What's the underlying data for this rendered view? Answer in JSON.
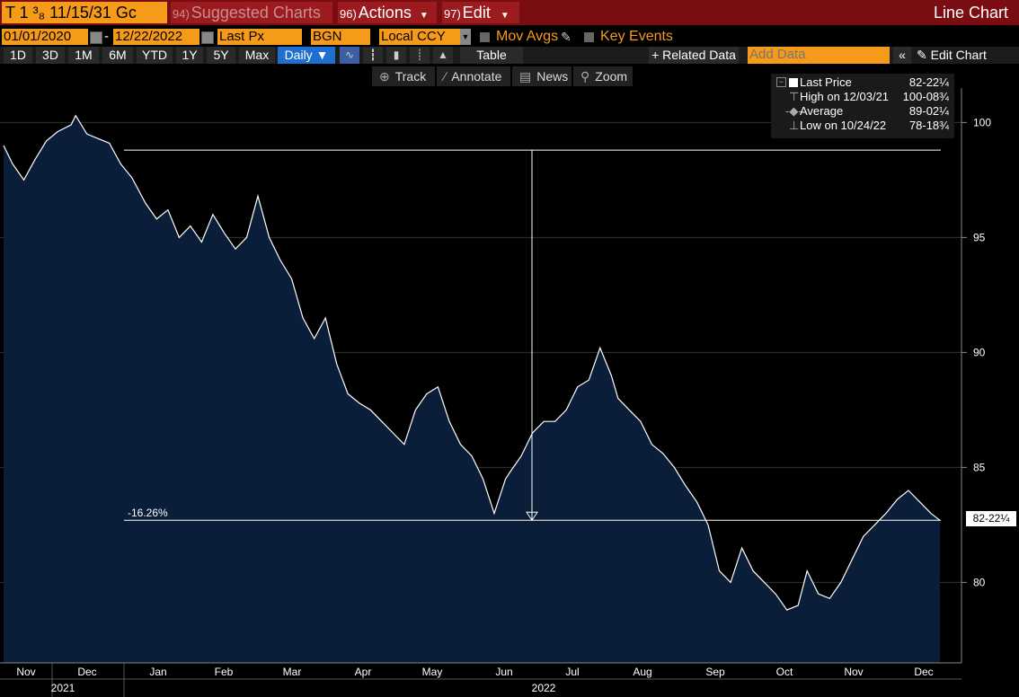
{
  "titlebar": {
    "ticker": "T 1 ³₈ 11/15/31 Gc",
    "suggest_num": "94)",
    "suggest": "Suggested Charts",
    "actions_num": "96)",
    "actions": "Actions",
    "edit_num": "97)",
    "edit": "Edit",
    "chart_type": "Line Chart"
  },
  "options": {
    "start_date": "01/01/2020",
    "end_date": "12/22/2022",
    "field": "Last Px",
    "source": "BGN",
    "currency": "Local CCY",
    "mov_avgs": "Mov Avgs",
    "key_events": "Key Events"
  },
  "periods": [
    "1D",
    "3D",
    "1M",
    "6M",
    "YTD",
    "1Y",
    "5Y",
    "Max"
  ],
  "frequency": "Daily ▼",
  "table_label": "Table",
  "related_data": "+ Related Data",
  "add_data_placeholder": "Add Data",
  "edit_chart": "Edit Chart",
  "tools": {
    "track": "Track",
    "annotate": "Annotate",
    "news": "News",
    "zoom": "Zoom"
  },
  "legend": {
    "last_label": "Last Price",
    "last_value": "82-22¼",
    "high_label": "High on 12/03/21",
    "high_value": "100-08¾",
    "avg_label": "Average",
    "avg_value": "89-02¼",
    "low_label": "Low on 10/24/22",
    "low_value": "78-18¾"
  },
  "annotation": {
    "change": "-16.26%"
  },
  "last_price_tag": "82-22¼",
  "colors": {
    "accent": "#f59b19",
    "titlebar": "#7a0d12",
    "fill": "#0a1e3a",
    "line": "#ffffff"
  },
  "chart_data": {
    "type": "area",
    "yticks": [
      80,
      85,
      90,
      95,
      100
    ],
    "ylim": [
      76.5,
      101.5
    ],
    "xticks": [
      "Nov",
      "Dec",
      "Jan",
      "Feb",
      "Mar",
      "Apr",
      "May",
      "Jun",
      "Jul",
      "Aug",
      "Sep",
      "Oct",
      "Nov",
      "Dec"
    ],
    "years": [
      "2021",
      "2022"
    ],
    "x": [
      "2021-11-01",
      "2021-11-05",
      "2021-11-10",
      "2021-11-15",
      "2021-11-20",
      "2021-11-25",
      "2021-12-01",
      "2021-12-03",
      "2021-12-08",
      "2021-12-13",
      "2021-12-18",
      "2021-12-23",
      "2021-12-28",
      "2022-01-03",
      "2022-01-08",
      "2022-01-13",
      "2022-01-18",
      "2022-01-23",
      "2022-01-28",
      "2022-02-02",
      "2022-02-07",
      "2022-02-12",
      "2022-02-17",
      "2022-02-22",
      "2022-02-27",
      "2022-03-04",
      "2022-03-09",
      "2022-03-14",
      "2022-03-19",
      "2022-03-24",
      "2022-03-29",
      "2022-04-03",
      "2022-04-08",
      "2022-04-13",
      "2022-04-18",
      "2022-04-23",
      "2022-04-28",
      "2022-05-03",
      "2022-05-08",
      "2022-05-13",
      "2022-05-18",
      "2022-05-23",
      "2022-05-28",
      "2022-06-02",
      "2022-06-07",
      "2022-06-12",
      "2022-06-14",
      "2022-06-19",
      "2022-06-24",
      "2022-06-29",
      "2022-07-04",
      "2022-07-09",
      "2022-07-14",
      "2022-07-19",
      "2022-07-24",
      "2022-07-29",
      "2022-08-01",
      "2022-08-06",
      "2022-08-11",
      "2022-08-16",
      "2022-08-21",
      "2022-08-26",
      "2022-08-31",
      "2022-09-05",
      "2022-09-10",
      "2022-09-15",
      "2022-09-20",
      "2022-09-25",
      "2022-09-30",
      "2022-10-05",
      "2022-10-10",
      "2022-10-15",
      "2022-10-20",
      "2022-10-24",
      "2022-10-29",
      "2022-11-03",
      "2022-11-08",
      "2022-11-13",
      "2022-11-18",
      "2022-11-23",
      "2022-11-28",
      "2022-12-03",
      "2022-12-08",
      "2022-12-13",
      "2022-12-18",
      "2022-12-22"
    ],
    "values": [
      99.0,
      98.2,
      97.5,
      98.4,
      99.2,
      99.6,
      99.9,
      100.3,
      99.5,
      99.3,
      99.1,
      98.2,
      97.6,
      96.5,
      95.8,
      96.2,
      95.0,
      95.5,
      94.8,
      96.0,
      95.2,
      94.5,
      95.0,
      96.8,
      95.0,
      94.0,
      93.2,
      91.5,
      90.6,
      91.5,
      89.5,
      88.2,
      87.8,
      87.5,
      87.0,
      86.5,
      86.0,
      87.5,
      88.2,
      88.5,
      87.0,
      86.0,
      85.5,
      84.5,
      83.0,
      84.5,
      84.8,
      85.5,
      86.5,
      87.0,
      87.0,
      87.5,
      88.5,
      88.8,
      90.2,
      89.0,
      88.0,
      87.5,
      87.0,
      86.0,
      85.6,
      85.0,
      84.2,
      83.5,
      82.5,
      80.5,
      80.0,
      81.5,
      80.5,
      80.0,
      79.5,
      78.8,
      79.0,
      80.5,
      79.5,
      79.3,
      80.0,
      81.0,
      82.0,
      82.5,
      83.0,
      83.6,
      84.0,
      83.5,
      83.0,
      82.7
    ],
    "reference_high": 98.8,
    "reference_low": 82.7,
    "change_pct": -16.26
  }
}
